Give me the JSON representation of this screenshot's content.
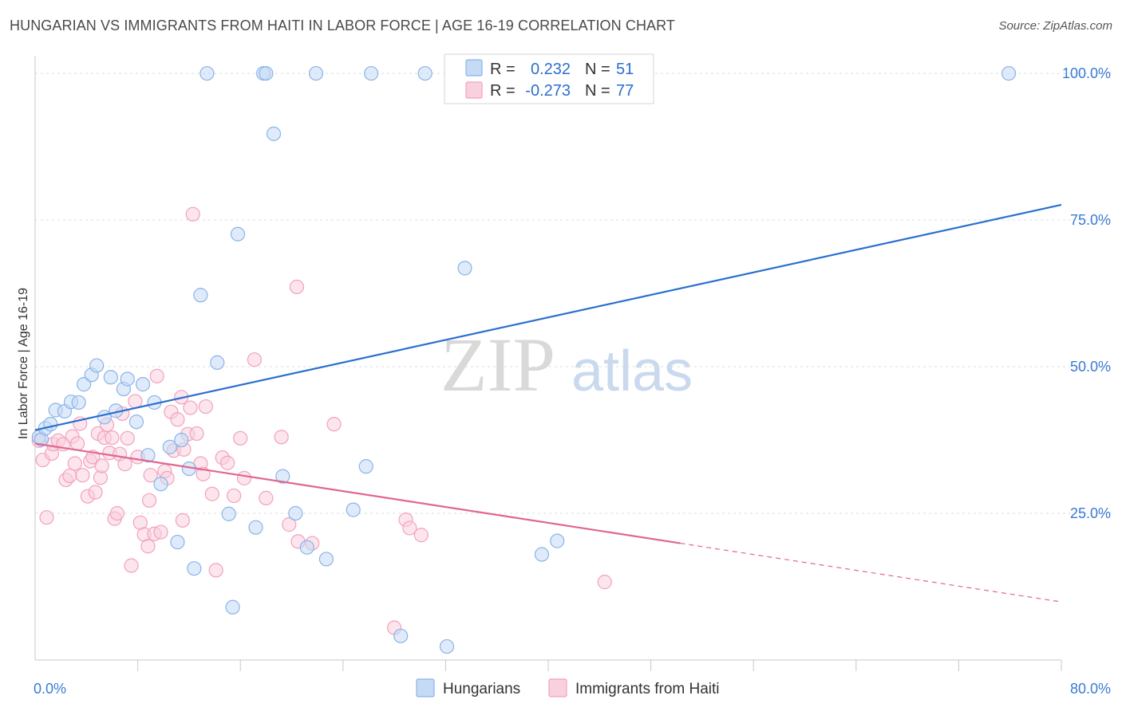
{
  "title": "HUNGARIAN VS IMMIGRANTS FROM HAITI IN LABOR FORCE | AGE 16-19 CORRELATION CHART",
  "source": "Source: ZipAtlas.com",
  "watermark": {
    "zip": "ZIP",
    "atlas": "atlas"
  },
  "chart_data": {
    "type": "scatter",
    "title": "HUNGARIAN VS IMMIGRANTS FROM HAITI IN LABOR FORCE | AGE 16-19 CORRELATION CHART",
    "xlabel": "",
    "ylabel": "In Labor Force | Age 16-19",
    "xlim": [
      0,
      80
    ],
    "ylim": [
      0,
      103
    ],
    "x_tick_labels": [
      {
        "value": 0,
        "label": "0.0%"
      },
      {
        "value": 80,
        "label": "80.0%"
      }
    ],
    "y_tick_labels": [
      {
        "value": 25,
        "label": "25.0%"
      },
      {
        "value": 50,
        "label": "50.0%"
      },
      {
        "value": 75,
        "label": "75.0%"
      },
      {
        "value": 100,
        "label": "100.0%"
      }
    ],
    "x_minor_ticks": [
      8,
      16,
      24,
      32,
      40,
      48,
      56,
      64,
      72,
      80
    ],
    "gridlines": [
      25,
      50,
      75,
      100
    ],
    "legend": {
      "position": "top-center",
      "entries": [
        {
          "r_label": "R =",
          "r_value": "0.232",
          "n_label": "N =",
          "n_value": "51"
        },
        {
          "r_label": "R =",
          "r_value": "-0.273",
          "n_label": "N =",
          "n_value": "77"
        }
      ]
    },
    "series": [
      {
        "name": "Hungarians",
        "color": "#8ab4e8",
        "fill": "#c5daf5",
        "line_color": "#2b6fcf",
        "trend": {
          "x0": 0,
          "y0": 39.2,
          "x1": 80,
          "y1": 77.6
        },
        "points": [
          [
            0.3,
            38
          ],
          [
            0.5,
            37.6
          ],
          [
            0.8,
            39.5
          ],
          [
            1.2,
            40.2
          ],
          [
            1.6,
            42.6
          ],
          [
            2.3,
            42.4
          ],
          [
            2.8,
            44
          ],
          [
            3.4,
            43.9
          ],
          [
            3.8,
            47
          ],
          [
            4.4,
            48.6
          ],
          [
            4.8,
            50.2
          ],
          [
            5.9,
            48.2
          ],
          [
            6.3,
            42.5
          ],
          [
            5.4,
            41.4
          ],
          [
            6.9,
            46.2
          ],
          [
            7.2,
            47.9
          ],
          [
            7.9,
            40.6
          ],
          [
            8.4,
            47
          ],
          [
            8.8,
            34.9
          ],
          [
            9.3,
            43.9
          ],
          [
            9.8,
            30
          ],
          [
            10.5,
            36.3
          ],
          [
            11.1,
            20.1
          ],
          [
            11.4,
            37.5
          ],
          [
            12,
            32.6
          ],
          [
            12.4,
            15.6
          ],
          [
            12.9,
            62.2
          ],
          [
            13.4,
            100
          ],
          [
            14.2,
            50.7
          ],
          [
            15.1,
            24.9
          ],
          [
            15.4,
            9
          ],
          [
            15.8,
            72.6
          ],
          [
            17.2,
            22.6
          ],
          [
            17.8,
            100
          ],
          [
            18,
            100
          ],
          [
            18.6,
            89.7
          ],
          [
            19.3,
            31.3
          ],
          [
            20.3,
            25
          ],
          [
            21.2,
            19.2
          ],
          [
            21.9,
            100
          ],
          [
            22.7,
            17.2
          ],
          [
            24.8,
            25.6
          ],
          [
            25.8,
            33
          ],
          [
            26.2,
            100
          ],
          [
            28.5,
            4.1
          ],
          [
            30.4,
            100
          ],
          [
            32.1,
            2.3
          ],
          [
            33.5,
            66.8
          ],
          [
            39.5,
            18
          ],
          [
            40.7,
            20.3
          ],
          [
            75.9,
            100
          ]
        ]
      },
      {
        "name": "Immigrants from Haiti",
        "color": "#f2a2bc",
        "fill": "#f9d0dd",
        "line_color": "#e0668f",
        "trend": {
          "x0": 0,
          "y0": 36.9,
          "x1": 50.3,
          "y1": 19.9
        },
        "trend_dashed": {
          "x0": 50.3,
          "y0": 19.9,
          "x1": 80,
          "y1": 9.9
        },
        "points": [
          [
            0.3,
            37.4
          ],
          [
            0.6,
            34.1
          ],
          [
            0.9,
            24.3
          ],
          [
            1.3,
            35.2
          ],
          [
            1.4,
            36.8
          ],
          [
            1.8,
            37.4
          ],
          [
            2.2,
            36.8
          ],
          [
            2.4,
            30.7
          ],
          [
            2.7,
            31.4
          ],
          [
            2.9,
            38.1
          ],
          [
            3.1,
            33.5
          ],
          [
            3.5,
            40.3
          ],
          [
            3.7,
            31.5
          ],
          [
            4.1,
            27.9
          ],
          [
            4.3,
            33.9
          ],
          [
            4.5,
            34.6
          ],
          [
            4.7,
            28.6
          ],
          [
            4.9,
            38.6
          ],
          [
            5.1,
            31.1
          ],
          [
            5.4,
            37.9
          ],
          [
            5.6,
            40.1
          ],
          [
            5.8,
            35.3
          ],
          [
            6,
            37.9
          ],
          [
            6.2,
            24.1
          ],
          [
            6.4,
            25
          ],
          [
            6.6,
            35.1
          ],
          [
            6.8,
            42
          ],
          [
            7,
            33.4
          ],
          [
            7.2,
            37.8
          ],
          [
            7.5,
            16.1
          ],
          [
            7.8,
            44.1
          ],
          [
            8,
            34.6
          ],
          [
            8.2,
            23.4
          ],
          [
            8.5,
            21.4
          ],
          [
            8.8,
            19.4
          ],
          [
            9,
            31.5
          ],
          [
            9.3,
            21.5
          ],
          [
            9.5,
            48.4
          ],
          [
            9.8,
            21.8
          ],
          [
            10.1,
            32.2
          ],
          [
            10.3,
            31
          ],
          [
            10.6,
            42.3
          ],
          [
            10.8,
            35.7
          ],
          [
            11.1,
            41
          ],
          [
            11.4,
            44.8
          ],
          [
            11.6,
            35.9
          ],
          [
            11.9,
            38.5
          ],
          [
            12.1,
            43
          ],
          [
            12.3,
            76
          ],
          [
            12.6,
            38.6
          ],
          [
            12.9,
            33.5
          ],
          [
            13.3,
            43.2
          ],
          [
            13.8,
            28.3
          ],
          [
            14.1,
            15.3
          ],
          [
            14.6,
            34.5
          ],
          [
            15,
            33.6
          ],
          [
            15.5,
            28
          ],
          [
            16,
            37.8
          ],
          [
            16.3,
            31
          ],
          [
            17.1,
            51.2
          ],
          [
            18,
            27.6
          ],
          [
            19.2,
            38
          ],
          [
            19.8,
            23.1
          ],
          [
            20.4,
            63.6
          ],
          [
            21.6,
            19.9
          ],
          [
            23.3,
            40.2
          ],
          [
            28,
            5.5
          ],
          [
            28.9,
            23.9
          ],
          [
            29.2,
            22.5
          ],
          [
            30.1,
            21.3
          ],
          [
            44.4,
            13.3
          ],
          [
            20.5,
            20.2
          ],
          [
            11.5,
            23.8
          ],
          [
            8.9,
            27.2
          ],
          [
            3.3,
            36.9
          ],
          [
            5.2,
            33.1
          ],
          [
            13.1,
            31.7
          ]
        ]
      }
    ]
  }
}
